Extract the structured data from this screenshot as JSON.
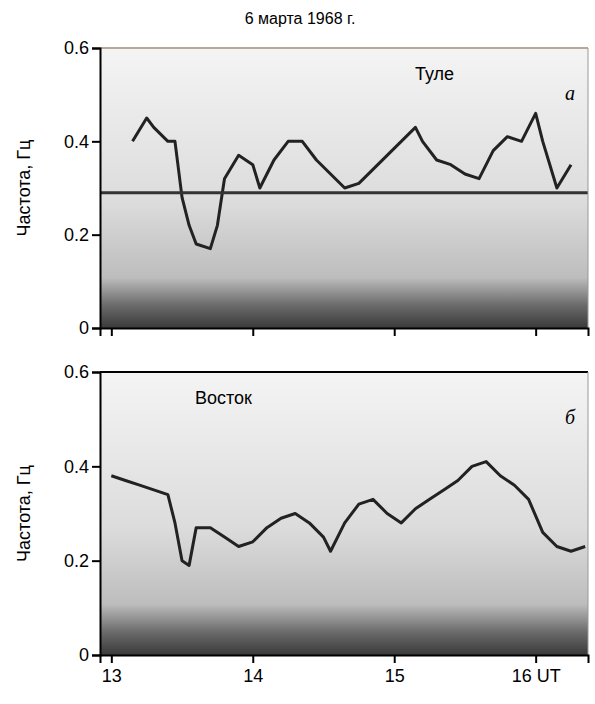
{
  "title": "6 марта 1968 г.",
  "chart_data": [
    {
      "type": "line",
      "title": "Туле",
      "panel_letter": "а",
      "y_label": "Частота, Гц",
      "xlim": [
        12.92,
        16.37
      ],
      "xticks": [
        13,
        14,
        15,
        16
      ],
      "ylim": [
        0,
        0.6
      ],
      "yticks": [
        0,
        0.2,
        0.4,
        0.6
      ],
      "tick_labels": "y",
      "series": [
        {
          "color": "#222222",
          "line_style": "solid",
          "x": [
            13.15,
            13.25,
            13.3,
            13.4,
            13.45,
            13.5,
            13.55,
            13.6,
            13.7,
            13.75,
            13.8,
            13.9,
            14.0,
            14.05,
            14.15,
            14.25,
            14.35,
            14.45,
            14.55,
            14.65,
            14.75,
            14.85,
            14.95,
            15.05,
            15.15,
            15.2,
            15.3,
            15.4,
            15.5,
            15.6,
            15.7,
            15.8,
            15.9,
            15.95,
            16.0,
            16.05,
            16.15,
            16.25
          ],
          "values": [
            0.4,
            0.45,
            0.43,
            0.4,
            0.4,
            0.28,
            0.22,
            0.18,
            0.17,
            0.22,
            0.32,
            0.37,
            0.35,
            0.3,
            0.36,
            0.4,
            0.4,
            0.36,
            0.33,
            0.3,
            0.31,
            0.34,
            0.37,
            0.4,
            0.43,
            0.4,
            0.36,
            0.35,
            0.33,
            0.32,
            0.38,
            0.41,
            0.4,
            0.43,
            0.46,
            0.4,
            0.3,
            0.35
          ]
        },
        {
          "color": "#333333",
          "line_style": "solid",
          "x": [
            12.92,
            16.37
          ],
          "values": [
            0.29,
            0.29
          ]
        }
      ]
    },
    {
      "type": "line",
      "title": "Восток",
      "panel_letter": "б",
      "y_label": "Частота, Гц",
      "xlim": [
        12.92,
        16.37
      ],
      "xticks": [
        13,
        14,
        15,
        {
          "value": 16,
          "label": "16 UT"
        }
      ],
      "ylim": [
        0,
        0.6
      ],
      "yticks": [
        0,
        0.2,
        0.4,
        0.6
      ],
      "tick_labels": true,
      "series": [
        {
          "color": "#222222",
          "line_style": "solid",
          "x": [
            13.0,
            13.1,
            13.2,
            13.3,
            13.4,
            13.45,
            13.5,
            13.55,
            13.6,
            13.7,
            13.8,
            13.9,
            14.0,
            14.1,
            14.2,
            14.3,
            14.4,
            14.5,
            14.55,
            14.65,
            14.75,
            14.85,
            14.95,
            15.05,
            15.15,
            15.25,
            15.35,
            15.45,
            15.55,
            15.65,
            15.75,
            15.85,
            15.95,
            16.05,
            16.15,
            16.25,
            16.35
          ],
          "values": [
            0.38,
            0.37,
            0.36,
            0.35,
            0.34,
            0.28,
            0.2,
            0.19,
            0.27,
            0.27,
            0.25,
            0.23,
            0.24,
            0.27,
            0.29,
            0.3,
            0.28,
            0.25,
            0.22,
            0.28,
            0.32,
            0.33,
            0.3,
            0.28,
            0.31,
            0.33,
            0.35,
            0.37,
            0.4,
            0.41,
            0.38,
            0.36,
            0.33,
            0.26,
            0.23,
            0.22,
            0.23
          ]
        }
      ]
    }
  ]
}
